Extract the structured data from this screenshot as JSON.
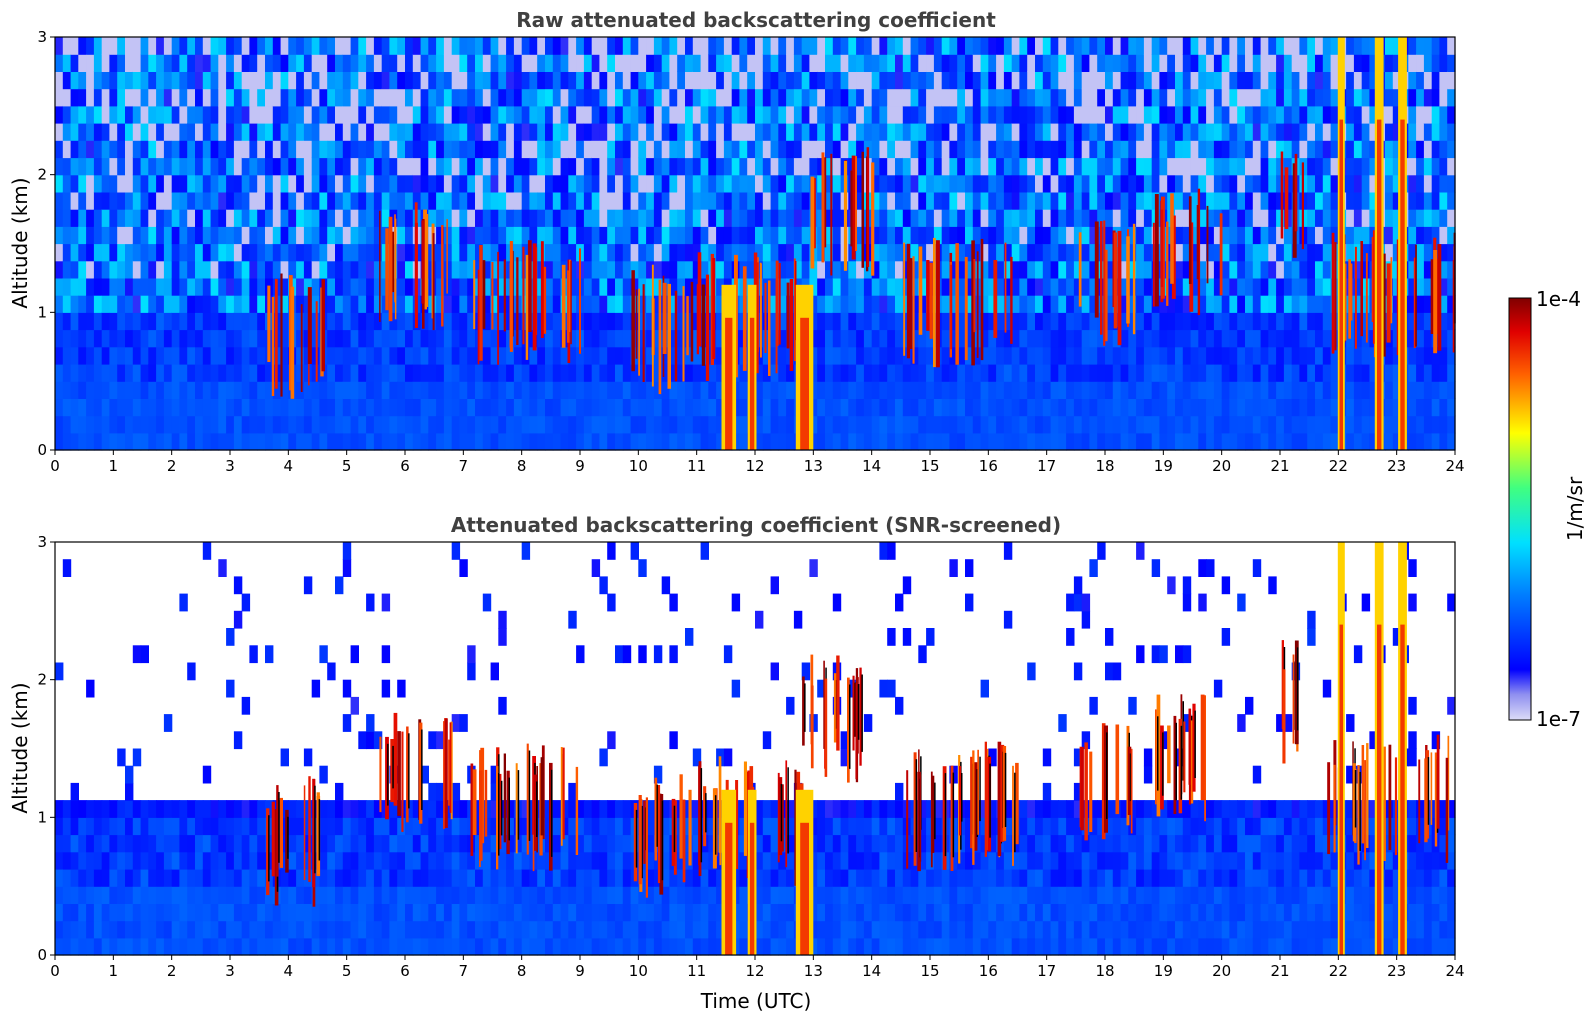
{
  "chart_data": [
    {
      "type": "heatmap",
      "title": "Raw attenuated backscattering coefficient",
      "xlabel": "",
      "ylabel": "Altitude (km)",
      "xlim": [
        0,
        24
      ],
      "ylim": [
        0,
        3
      ],
      "xticks": [
        "0",
        "1",
        "2",
        "3",
        "4",
        "5",
        "6",
        "7",
        "8",
        "9",
        "10",
        "11",
        "12",
        "13",
        "14",
        "15",
        "16",
        "17",
        "18",
        "19",
        "20",
        "21",
        "22",
        "23",
        "24"
      ],
      "yticks": [
        "0",
        "1",
        "2",
        "3"
      ],
      "screened": false,
      "cloud_layers": [
        {
          "t_start": 3.6,
          "t_end": 4.6,
          "alt": 1.0
        },
        {
          "t_start": 5.5,
          "t_end": 6.8,
          "alt": 1.5
        },
        {
          "t_start": 7.0,
          "t_end": 9.0,
          "alt": 1.25
        },
        {
          "t_start": 9.8,
          "t_end": 11.0,
          "alt": 1.05
        },
        {
          "t_start": 11.0,
          "t_end": 12.8,
          "alt": 1.15
        },
        {
          "t_start": 12.8,
          "t_end": 14.0,
          "alt": 1.9
        },
        {
          "t_start": 14.5,
          "t_end": 16.5,
          "alt": 1.25
        },
        {
          "t_start": 17.5,
          "t_end": 18.5,
          "alt": 1.4
        },
        {
          "t_start": 18.8,
          "t_end": 20.0,
          "alt": 1.6
        },
        {
          "t_start": 21.0,
          "t_end": 21.4,
          "alt": 2.0
        },
        {
          "t_start": 21.8,
          "t_end": 24.0,
          "alt": 1.3
        }
      ],
      "precip_columns": [
        {
          "t": 11.55,
          "width": 0.25
        },
        {
          "t": 11.95,
          "width": 0.15
        },
        {
          "t": 12.85,
          "width": 0.3
        },
        {
          "t": 22.05,
          "width": 0.12
        },
        {
          "t": 22.7,
          "width": 0.15
        },
        {
          "t": 23.1,
          "width": 0.15
        }
      ]
    },
    {
      "type": "heatmap",
      "title": "Attenuated backscattering coefficient (SNR-screened)",
      "xlabel": "Time (UTC)",
      "ylabel": "Altitude (km)",
      "xlim": [
        0,
        24
      ],
      "ylim": [
        0,
        3
      ],
      "xticks": [
        "0",
        "1",
        "2",
        "3",
        "4",
        "5",
        "6",
        "7",
        "8",
        "9",
        "10",
        "11",
        "12",
        "13",
        "14",
        "15",
        "16",
        "17",
        "18",
        "19",
        "20",
        "21",
        "22",
        "23",
        "24"
      ],
      "yticks": [
        "0",
        "1",
        "2",
        "3"
      ],
      "screened": true
    }
  ],
  "colorbar": {
    "label": "1/m/sr",
    "max_label": "1e-4",
    "min_label": "1e-7",
    "scale": "log",
    "colormap": "jet"
  },
  "colors": {
    "background": "#ffffff",
    "axis": "#000000",
    "title": "#404040"
  }
}
